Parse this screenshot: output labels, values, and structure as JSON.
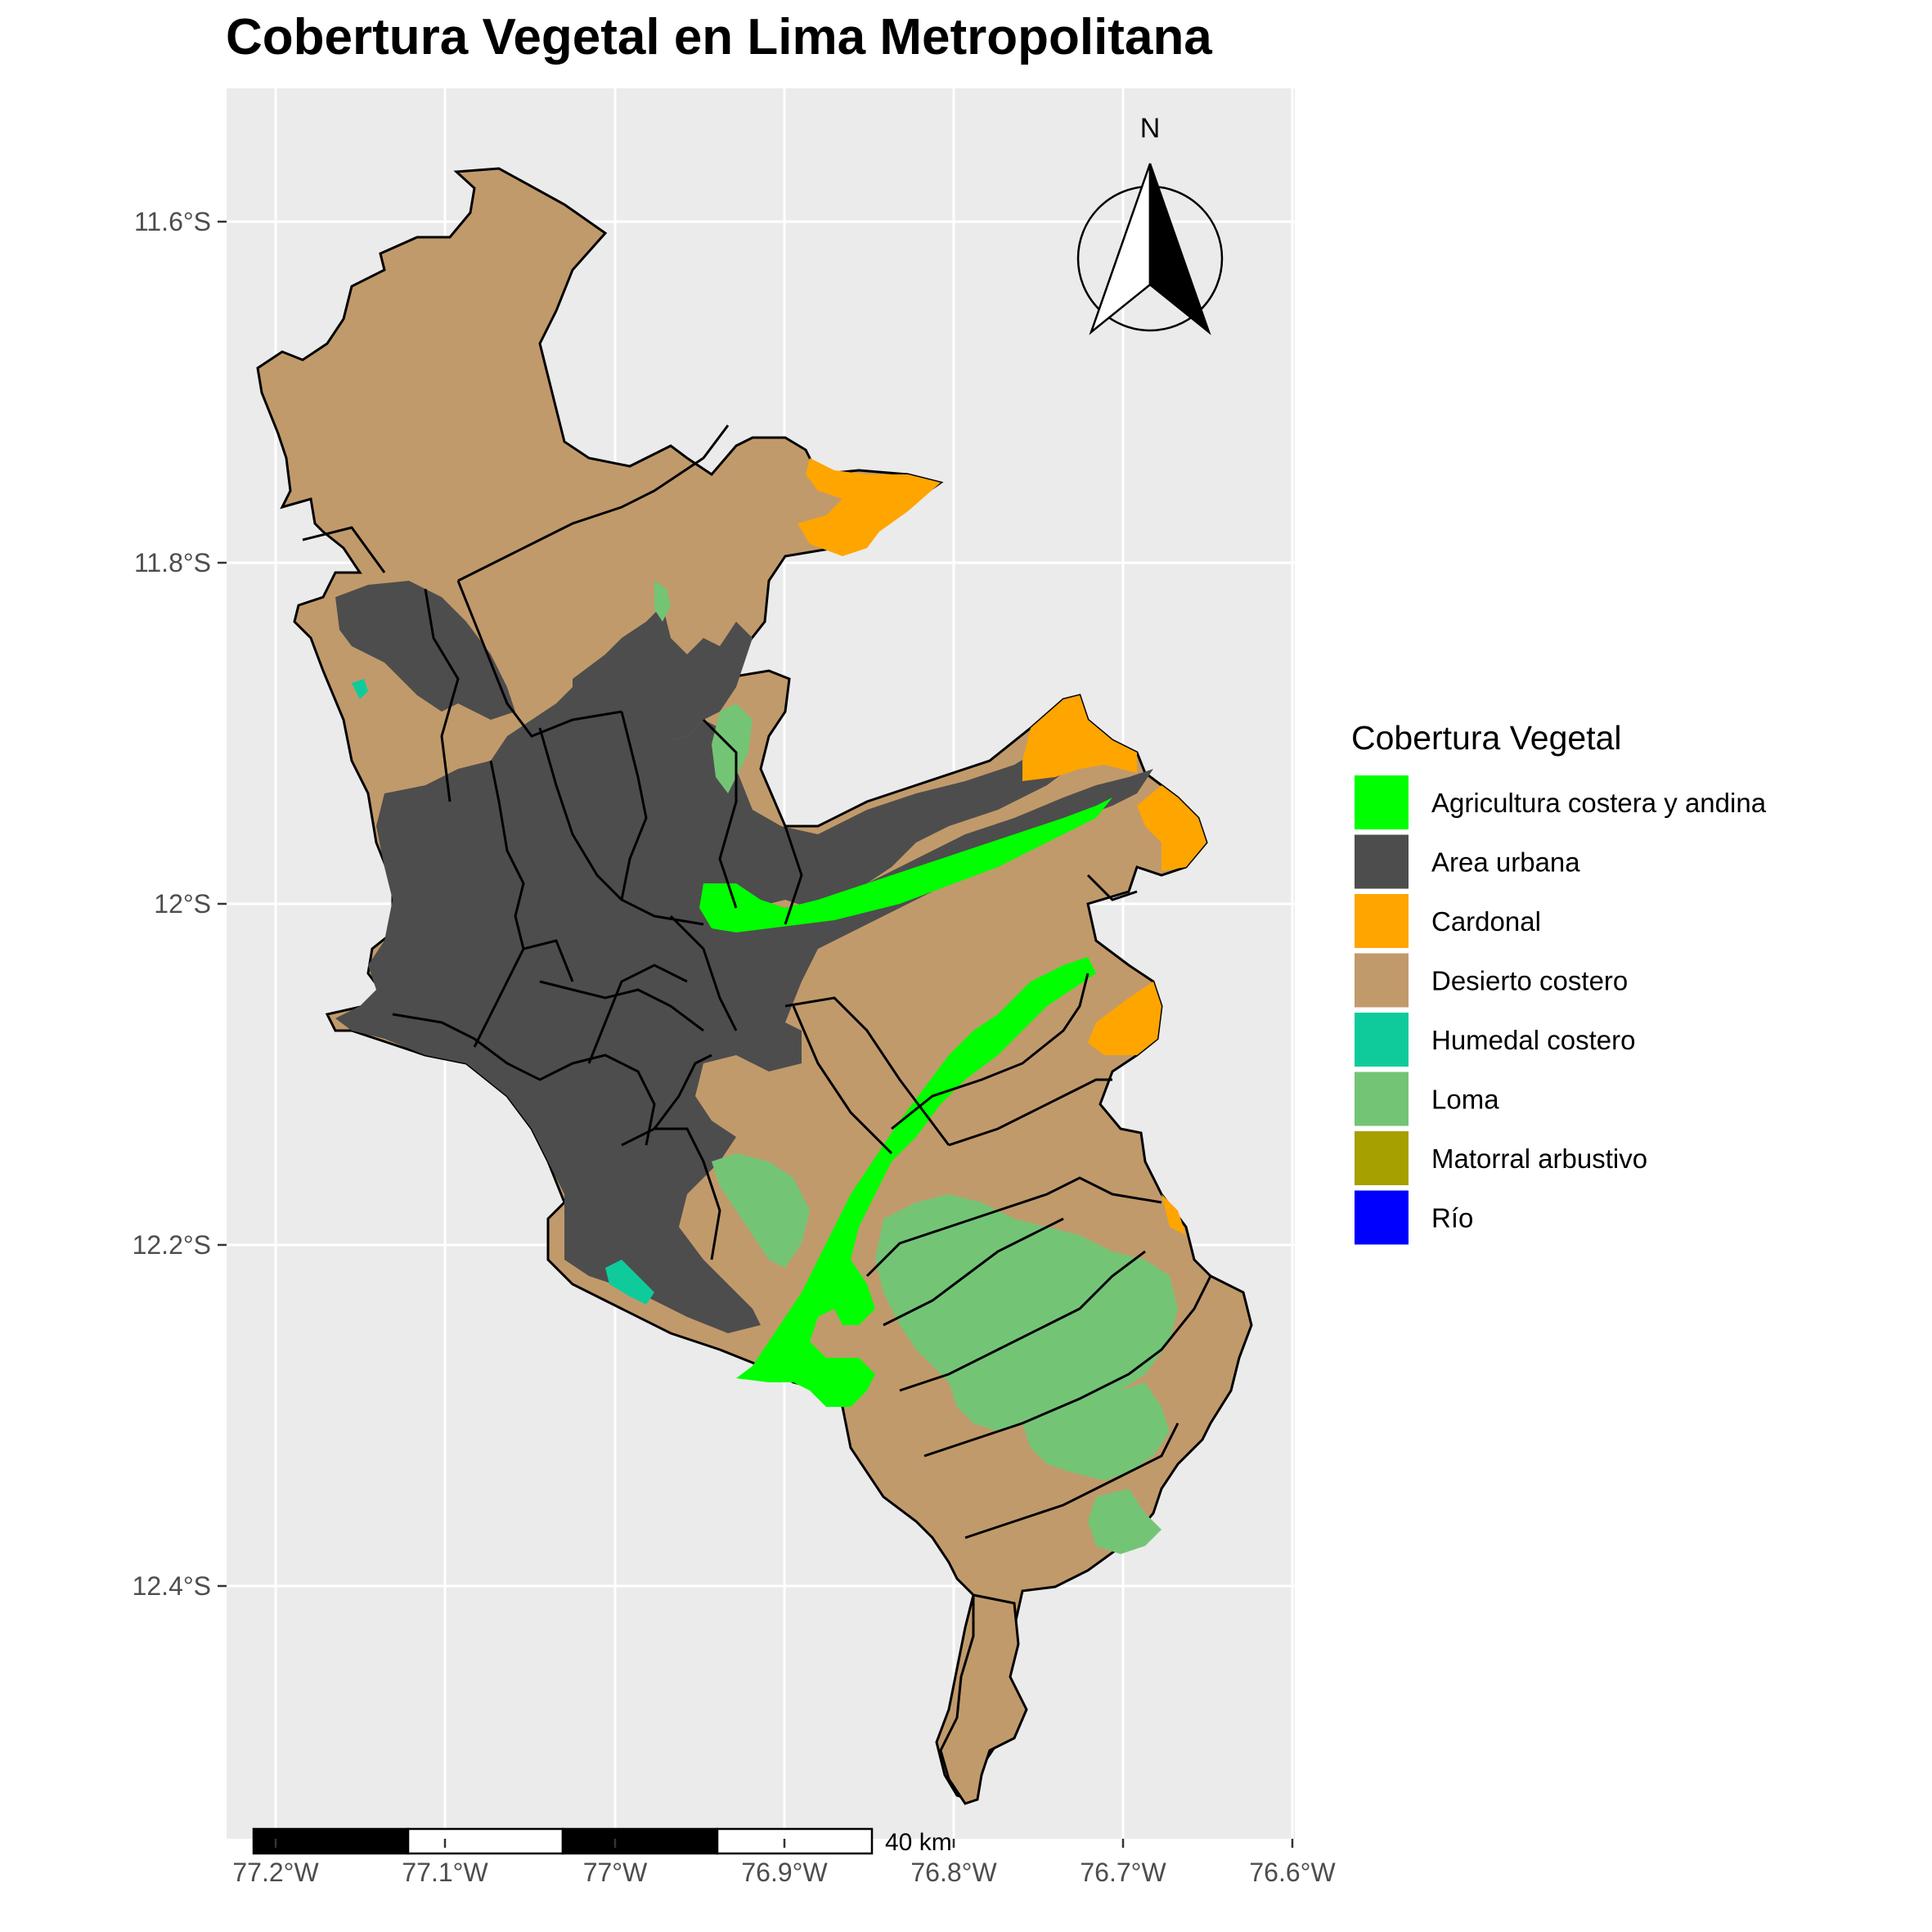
{
  "title": "Cobertura Vegetal en Lima Metropolitana",
  "north_arrow": {
    "label": "N"
  },
  "scalebar": {
    "label": "40 km"
  },
  "legend": {
    "title": "Cobertura Vegetal",
    "items": [
      {
        "label": "Agricultura costera y andina",
        "color": "#00FF00"
      },
      {
        "label": "Area urbana",
        "color": "#4D4D4D"
      },
      {
        "label": "Cardonal",
        "color": "#FFA500"
      },
      {
        "label": "Desierto costero",
        "color": "#C19A6B"
      },
      {
        "label": "Humedal costero",
        "color": "#0FCB9B"
      },
      {
        "label": "Loma",
        "color": "#74C476"
      },
      {
        "label": "Matorral arbustivo",
        "color": "#A6A000"
      },
      {
        "label": "Río",
        "color": "#0000FF"
      }
    ]
  },
  "axes": {
    "x_ticks": [
      "77.2°W",
      "77.1°W",
      "77°W",
      "76.9°W",
      "76.8°W",
      "76.7°W",
      "76.6°W"
    ],
    "y_ticks": [
      "11.6°S",
      "11.8°S",
      "12°S",
      "12.2°S",
      "12.4°S"
    ]
  },
  "colors": {
    "panel_background": "#EBEBEB",
    "gridline": "#FFFFFF",
    "boundary": "#000000"
  }
}
